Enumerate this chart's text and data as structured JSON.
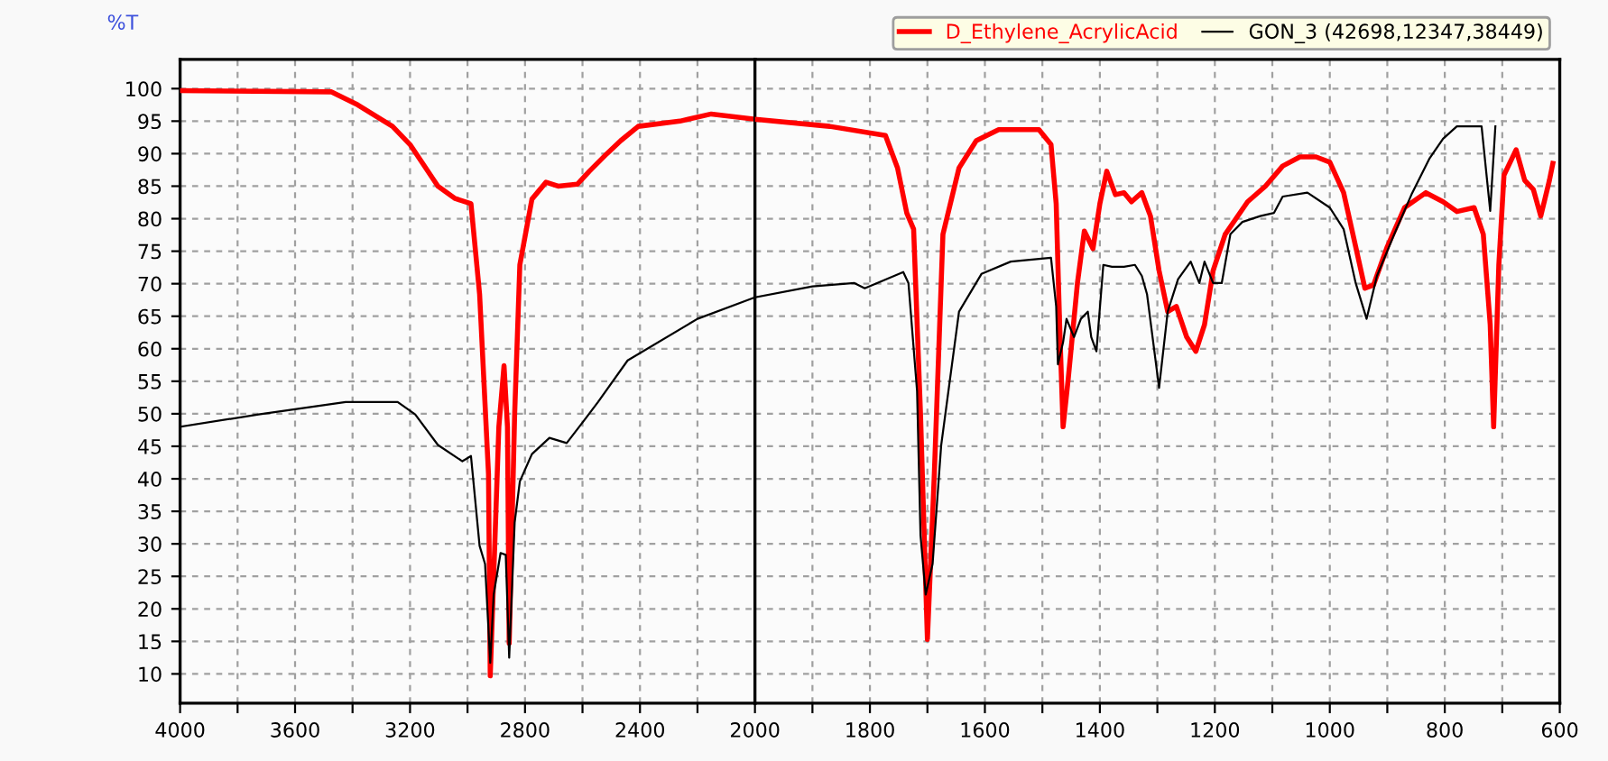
{
  "chart_data": [
    {
      "type": "line",
      "ylabel": "%T",
      "xlim": [
        4000,
        2000
      ],
      "ylim": [
        5.5,
        104.5
      ],
      "xticks": [
        4000,
        {
          "value": 3800,
          "label": null
        },
        3600,
        {
          "value": 3400,
          "label": null
        },
        3200,
        {
          "value": 3000,
          "label": null
        },
        2800,
        {
          "value": 2600,
          "label": null
        },
        2400,
        {
          "value": 2200,
          "label": null
        }
      ],
      "yticks": [
        10,
        15,
        20,
        25,
        30,
        35,
        40,
        45,
        50,
        55,
        60,
        65,
        70,
        75,
        80,
        85,
        90,
        95,
        100
      ],
      "grid": true,
      "line_style": "solid",
      "series": [
        {
          "color": "#ff0000",
          "x": [
            4000,
            3473,
            3382,
            3261,
            3200,
            3103,
            3043,
            2988,
            2958,
            2927,
            2921,
            2891,
            2873,
            2861,
            2855,
            2836,
            2818,
            2776,
            2727,
            2685,
            2618,
            2576,
            2515,
            2467,
            2406,
            2261,
            2152,
            2000
          ],
          "values": [
            99.7,
            99.5,
            97.5,
            94.2,
            91.4,
            85,
            83.1,
            82.3,
            68.4,
            40.7,
            9.7,
            48,
            57.4,
            48,
            14.7,
            50,
            72.9,
            83,
            85.6,
            85,
            85.3,
            87.3,
            90,
            92,
            94.2,
            95,
            96.1,
            95.3
          ]
        },
        {
          "color": "#000000",
          "x": [
            4000,
            3727,
            3424,
            3243,
            3182,
            3103,
            3018,
            2988,
            2958,
            2939,
            2921,
            2909,
            2885,
            2867,
            2855,
            2836,
            2818,
            2776,
            2715,
            2655,
            2594,
            2546,
            2443,
            2200,
            2000
          ],
          "values": [
            48,
            49.9,
            51.8,
            51.8,
            49.9,
            45.2,
            42.7,
            43.5,
            29.7,
            26.9,
            11.7,
            22.2,
            28.6,
            28.3,
            12.5,
            33.3,
            39.6,
            43.8,
            46.3,
            45.5,
            49,
            51.8,
            58.2,
            64.6,
            67.9
          ]
        }
      ]
    },
    {
      "type": "line",
      "xlim": [
        2000,
        600
      ],
      "ylim": [
        5.5,
        104.5
      ],
      "xticks": [
        2000,
        {
          "value": 1900,
          "label": null
        },
        1800,
        {
          "value": 1700,
          "label": null
        },
        1600,
        {
          "value": 1500,
          "label": null
        },
        1400,
        {
          "value": 1300,
          "label": null
        },
        1200,
        {
          "value": 1100,
          "label": null
        },
        1000,
        {
          "value": 900,
          "label": null
        },
        800,
        {
          "value": 700,
          "label": null
        },
        600
      ],
      "yticks": [
        10,
        15,
        20,
        25,
        30,
        35,
        40,
        45,
        50,
        55,
        60,
        65,
        70,
        75,
        80,
        85,
        90,
        95,
        100
      ],
      "tick_labels": "x",
      "grid": true,
      "legend": "top right",
      "line_style": "solid",
      "series": [
        {
          "name": "D_Ethylene_AcrylicAcid",
          "color": "#ff0000",
          "x": [
            2000,
            1870,
            1773,
            1752,
            1736,
            1724,
            1712,
            1700,
            1688,
            1673,
            1645,
            1615,
            1576,
            1506,
            1485,
            1476,
            1470,
            1464,
            1455,
            1439,
            1427,
            1412,
            1400,
            1388,
            1373,
            1358,
            1345,
            1327,
            1312,
            1297,
            1282,
            1267,
            1249,
            1233,
            1218,
            1203,
            1182,
            1143,
            1112,
            1082,
            1052,
            1024,
            1000,
            976,
            955,
            939,
            924,
            900,
            870,
            833,
            803,
            779,
            749,
            733,
            721,
            715,
            706,
            697,
            676,
            661,
            646,
            633,
            618,
            612
          ],
          "values": [
            95.3,
            94.2,
            92.8,
            87.8,
            80.9,
            78.4,
            49.9,
            15.3,
            40.7,
            77.6,
            87.8,
            92,
            93.7,
            93.7,
            91.4,
            82.3,
            63.7,
            48,
            55.4,
            70.1,
            78.1,
            75.4,
            82.3,
            87.3,
            83.7,
            84,
            82.6,
            84,
            80.4,
            72,
            65.7,
            66.5,
            61.8,
            59.6,
            63.7,
            72,
            77.6,
            82.6,
            85,
            88.1,
            89.5,
            89.5,
            88.7,
            84,
            75.7,
            69.3,
            69.8,
            75.7,
            81.7,
            84,
            82.6,
            81.1,
            81.7,
            77.6,
            63.7,
            48,
            72.9,
            86.7,
            90.6,
            85.9,
            84.5,
            80.4,
            85.9,
            88.5
          ]
        },
        {
          "name": "GON_3 (42698,12347,38449)",
          "color": "#000000",
          "x": [
            2000,
            1900,
            1827,
            1809,
            1742,
            1733,
            1718,
            1712,
            1703,
            1691,
            1676,
            1645,
            1606,
            1555,
            1485,
            1476,
            1473,
            1464,
            1458,
            1445,
            1433,
            1421,
            1415,
            1406,
            1394,
            1379,
            1358,
            1339,
            1327,
            1318,
            1297,
            1282,
            1264,
            1242,
            1227,
            1218,
            1203,
            1188,
            1173,
            1152,
            1121,
            1097,
            1082,
            1039,
            1000,
            976,
            955,
            936,
            918,
            888,
            858,
            827,
            803,
            779,
            736,
            721,
            712
          ],
          "values": [
            67.9,
            69.6,
            70.1,
            69.3,
            71.8,
            70.1,
            53.5,
            31.3,
            22.2,
            26.9,
            45.2,
            65.7,
            71.5,
            73.4,
            74,
            66.5,
            57.6,
            61,
            64.6,
            61.8,
            64.6,
            65.7,
            61.8,
            59.6,
            72.9,
            72.6,
            72.6,
            72.9,
            71.2,
            68.4,
            54,
            65.7,
            70.7,
            73.4,
            70.1,
            73.4,
            70.1,
            70.1,
            77.6,
            79.5,
            80.4,
            80.9,
            83.4,
            84,
            81.7,
            78.4,
            70.1,
            64.6,
            71.2,
            77.6,
            83.7,
            89.2,
            92.3,
            94.2,
            94.2,
            81.2,
            94.2
          ]
        }
      ]
    }
  ]
}
